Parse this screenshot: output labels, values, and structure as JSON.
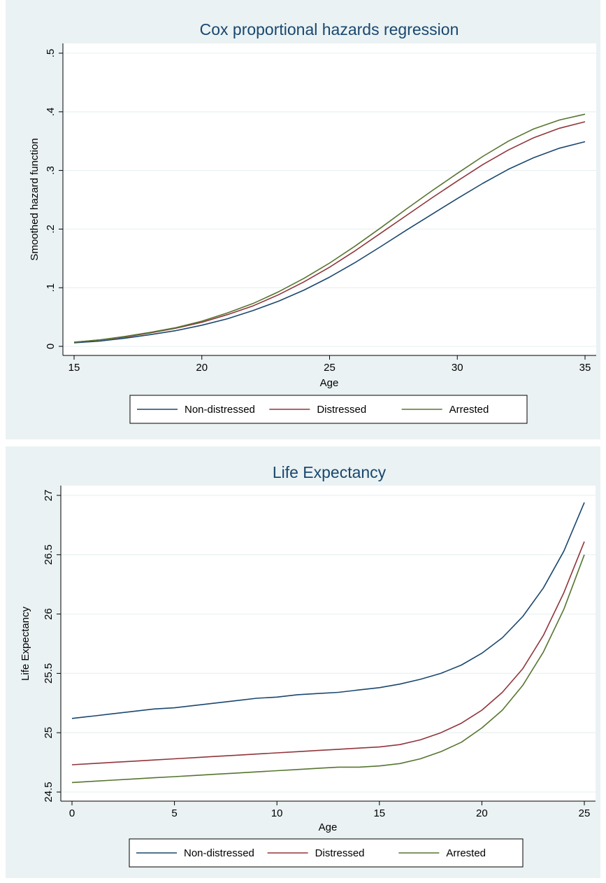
{
  "charts": [
    {
      "title": "Cox proportional hazards regression",
      "chart_data": {
        "type": "line",
        "title": "Cox proportional hazards regression",
        "xlabel": "Age",
        "ylabel": "Smoothed hazard function",
        "xlim": [
          15,
          35
        ],
        "ylim": [
          0,
          0.5
        ],
        "x_ticks": [
          15,
          20,
          25,
          30,
          35
        ],
        "x_tick_labels": [
          "15",
          "20",
          "25",
          "30",
          "35"
        ],
        "y_ticks": [
          0,
          0.1,
          0.2,
          0.3,
          0.4,
          0.5
        ],
        "y_tick_labels": [
          "0",
          ".1",
          ".2",
          ".3",
          ".4",
          ".5"
        ],
        "grid": true,
        "legend_position": "bottom",
        "x": [
          15,
          16,
          17,
          18,
          19,
          20,
          21,
          22,
          23,
          24,
          25,
          26,
          27,
          28,
          29,
          30,
          31,
          32,
          33,
          34,
          35
        ],
        "series": [
          {
            "name": "Non-distressed",
            "color": "#1a476f",
            "values": [
              0.006,
              0.009,
              0.014,
              0.02,
              0.027,
              0.036,
              0.047,
              0.061,
              0.077,
              0.096,
              0.118,
              0.143,
              0.17,
              0.198,
              0.225,
              0.252,
              0.278,
              0.302,
              0.322,
              0.338,
              0.349
            ]
          },
          {
            "name": "Distressed",
            "color": "#90353b",
            "values": [
              0.007,
              0.011,
              0.016,
              0.023,
              0.031,
              0.041,
              0.054,
              0.069,
              0.088,
              0.11,
              0.135,
              0.163,
              0.193,
              0.223,
              0.253,
              0.282,
              0.31,
              0.335,
              0.356,
              0.372,
              0.383
            ]
          },
          {
            "name": "Arrested",
            "color": "#55752f",
            "values": [
              0.007,
              0.011,
              0.017,
              0.024,
              0.032,
              0.043,
              0.057,
              0.073,
              0.093,
              0.116,
              0.142,
              0.171,
              0.202,
              0.234,
              0.265,
              0.295,
              0.324,
              0.35,
              0.371,
              0.386,
              0.396
            ]
          }
        ]
      },
      "legend": [
        "Non-distressed",
        "Distressed",
        "Arrested"
      ]
    },
    {
      "title": "Life Expectancy",
      "chart_data": {
        "type": "line",
        "title": "Life Expectancy",
        "xlabel": "Age",
        "ylabel": "Life Expectancy",
        "xlim": [
          0,
          25
        ],
        "ylim": [
          24.5,
          27
        ],
        "x_ticks": [
          0,
          5,
          10,
          15,
          20,
          25
        ],
        "x_tick_labels": [
          "0",
          "5",
          "10",
          "15",
          "20",
          "25"
        ],
        "y_ticks": [
          24.5,
          25,
          25.5,
          26,
          26.5,
          27
        ],
        "y_tick_labels": [
          "24.5",
          "25",
          "25.5",
          "26",
          "26.5",
          "27"
        ],
        "grid": true,
        "legend_position": "bottom",
        "x": [
          0,
          1,
          2,
          3,
          4,
          5,
          6,
          7,
          8,
          9,
          10,
          11,
          12,
          13,
          14,
          15,
          16,
          17,
          18,
          19,
          20,
          21,
          22,
          23,
          24,
          25
        ],
        "series": [
          {
            "name": "Non-distressed",
            "color": "#1a476f",
            "values": [
              25.12,
              25.14,
              25.16,
              25.18,
              25.2,
              25.21,
              25.23,
              25.25,
              25.27,
              25.29,
              25.3,
              25.32,
              25.33,
              25.34,
              25.36,
              25.38,
              25.41,
              25.45,
              25.5,
              25.57,
              25.67,
              25.8,
              25.98,
              26.22,
              26.53,
              26.94
            ]
          },
          {
            "name": "Distressed",
            "color": "#90353b",
            "values": [
              24.73,
              24.74,
              24.75,
              24.76,
              24.77,
              24.78,
              24.79,
              24.8,
              24.81,
              24.82,
              24.83,
              24.84,
              24.85,
              24.86,
              24.87,
              24.88,
              24.9,
              24.94,
              25.0,
              25.08,
              25.19,
              25.34,
              25.54,
              25.82,
              26.18,
              26.61
            ]
          },
          {
            "name": "Arrested",
            "color": "#55752f",
            "values": [
              24.58,
              24.59,
              24.6,
              24.61,
              24.62,
              24.63,
              24.64,
              24.65,
              24.66,
              24.67,
              24.68,
              24.69,
              24.7,
              24.71,
              24.71,
              24.72,
              24.74,
              24.78,
              24.84,
              24.92,
              25.04,
              25.19,
              25.4,
              25.68,
              26.04,
              26.5
            ]
          }
        ]
      },
      "legend": [
        "Non-distressed",
        "Distressed",
        "Arrested"
      ]
    }
  ]
}
